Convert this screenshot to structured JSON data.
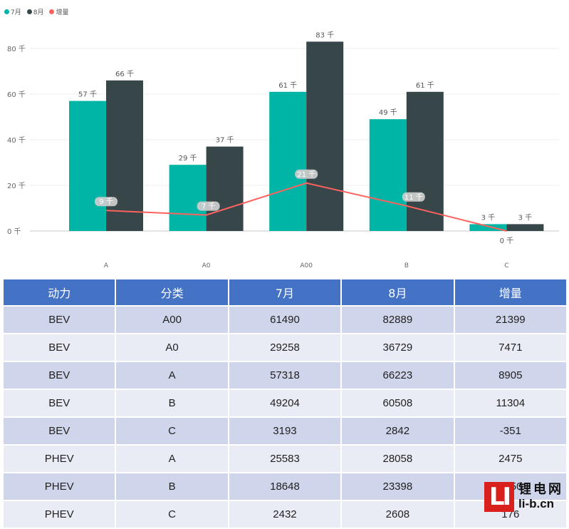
{
  "chart_data": {
    "type": "bar",
    "categories": [
      "A",
      "A0",
      "A00",
      "B",
      "C"
    ],
    "series": [
      {
        "name": "7月",
        "type": "bar",
        "color": "#00b4a6",
        "values": [
          57,
          29,
          61,
          49,
          3
        ],
        "labels": [
          "57 千",
          "29 千",
          "61 千",
          "49 千",
          "3 千"
        ]
      },
      {
        "name": "8月",
        "type": "bar",
        "color": "#374649",
        "values": [
          66,
          37,
          83,
          61,
          3
        ],
        "labels": [
          "66 千",
          "37 千",
          "83 千",
          "61 千",
          "3 千"
        ]
      },
      {
        "name": "增量",
        "type": "line",
        "color": "#fd625e",
        "values": [
          9,
          7,
          21,
          11,
          0
        ],
        "labels": [
          "9 千",
          "7 千",
          "21 千",
          "11 千",
          "0 千"
        ]
      }
    ],
    "yticks": [
      "0 千",
      "20 千",
      "40 千",
      "60 千",
      "80 千"
    ],
    "ytick_values": [
      0,
      20,
      40,
      60,
      80
    ],
    "ylim": [
      0,
      90
    ],
    "grid": true,
    "legend": "top-left"
  },
  "table": {
    "headers": [
      "动力",
      "分类",
      "7月",
      "8月",
      "增量"
    ],
    "rows": [
      [
        "BEV",
        "A00",
        "61490",
        "82889",
        "21399"
      ],
      [
        "BEV",
        "A0",
        "29258",
        "36729",
        "7471"
      ],
      [
        "BEV",
        "A",
        "57318",
        "66223",
        "8905"
      ],
      [
        "BEV",
        "B",
        "49204",
        "60508",
        "11304"
      ],
      [
        "BEV",
        "C",
        "3193",
        "2842",
        "-351"
      ],
      [
        "PHEV",
        "A",
        "25583",
        "28058",
        "2475"
      ],
      [
        "PHEV",
        "B",
        "18648",
        "23398",
        "4750"
      ],
      [
        "PHEV",
        "C",
        "2432",
        "2608",
        "176"
      ]
    ]
  },
  "watermark": {
    "logo": "LI",
    "name": "锂电网",
    "url": "li-b.cn"
  }
}
